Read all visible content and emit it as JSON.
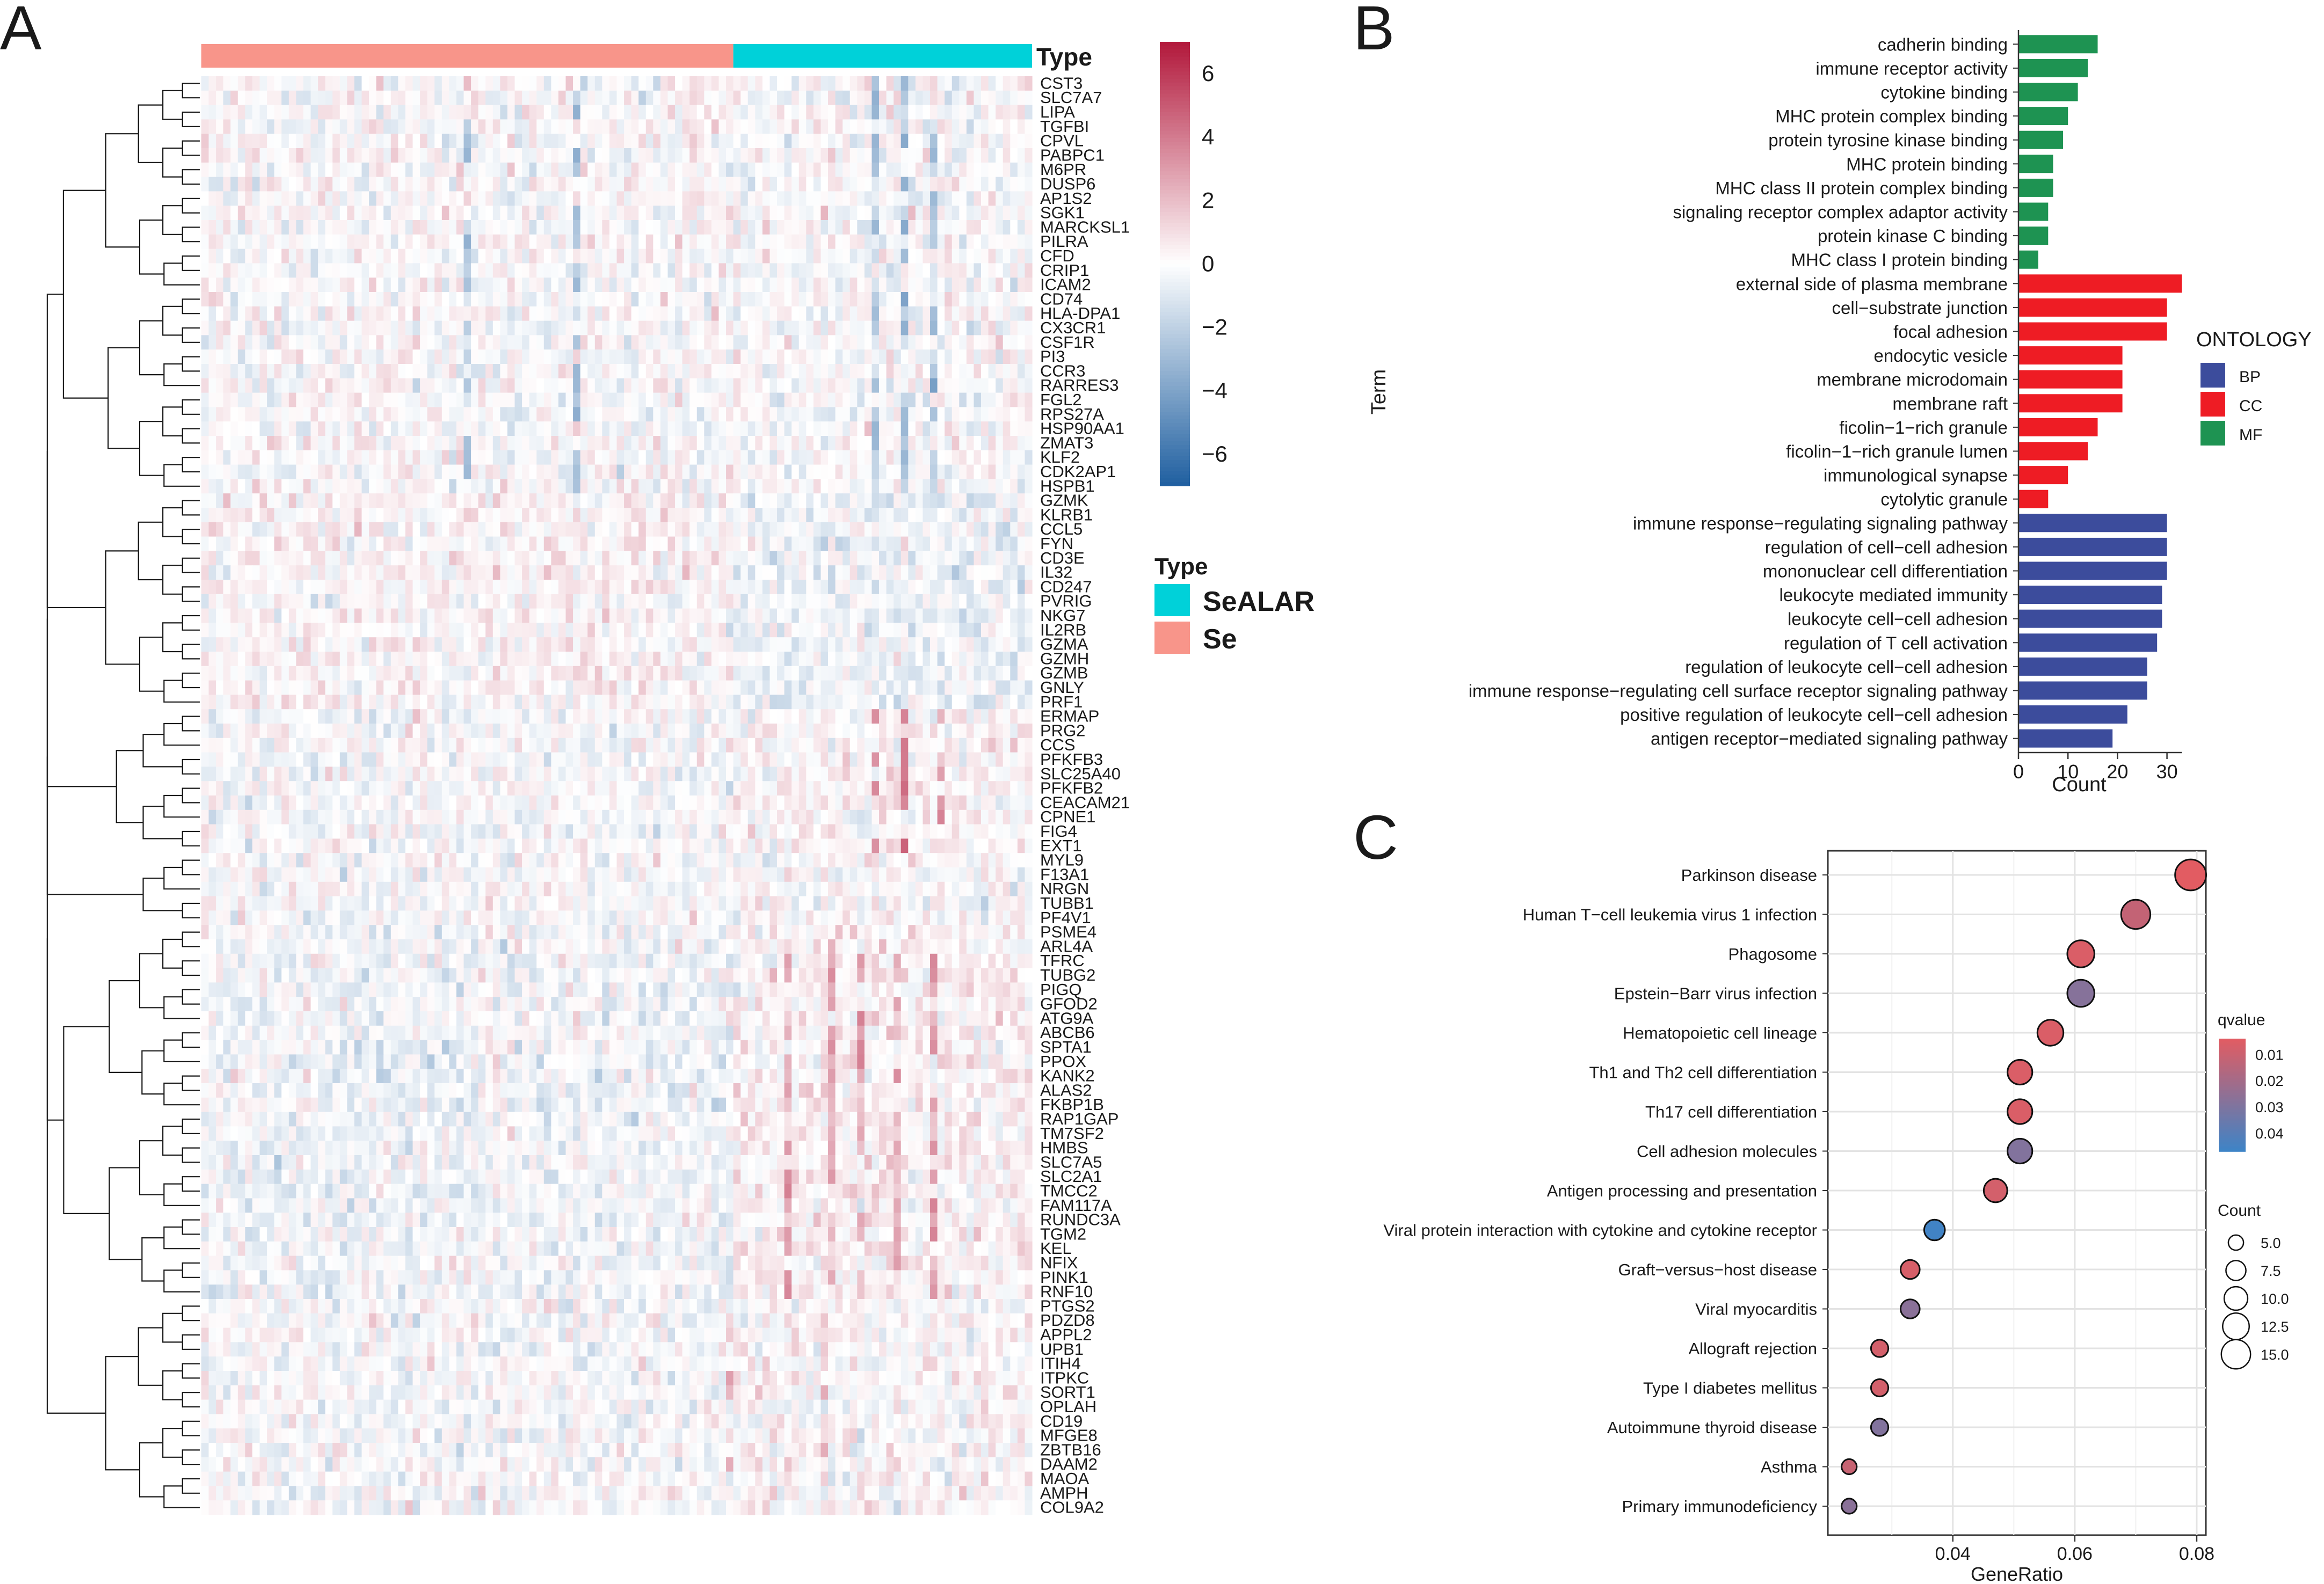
{
  "panel_labels": {
    "a": "A",
    "b": "B",
    "c": "C"
  },
  "colors": {
    "se": "#F8958A",
    "sealar": "#00D1D9",
    "heat_low": "#1F5FA0",
    "heat_mid": "#FFFFFF",
    "heat_high": "#B2183B",
    "bp": "#3C4C9C",
    "cc": "#EE1C24",
    "mf": "#1E9352",
    "q_low": "#E25C62",
    "q_high": "#3D84C7"
  },
  "chart_data": [
    {
      "type": "heatmap",
      "annotation_title": "Type",
      "legend_title": "Type",
      "legend": [
        {
          "name": "SeALAR",
          "color": "#00D1D9"
        },
        {
          "name": "Se",
          "color": "#F8958A"
        }
      ],
      "group_sizes": {
        "Se": 73,
        "SeALAR": 41
      },
      "color_scale": {
        "min": -7,
        "max": 7,
        "ticks": [
          "6",
          "4",
          "2",
          "0",
          "−2",
          "−4",
          "−6"
        ]
      },
      "genes": [
        "CST3",
        "SLC7A7",
        "LIPA",
        "TGFBI",
        "CPVL",
        "PABPC1",
        "M6PR",
        "DUSP6",
        "AP1S2",
        "SGK1",
        "MARCKSL1",
        "PILRA",
        "CFD",
        "CRIP1",
        "ICAM2",
        "CD74",
        "HLA-DPA1",
        "CX3CR1",
        "CSF1R",
        "PI3",
        "CCR3",
        "RARRES3",
        "FGL2",
        "RPS27A",
        "HSP90AA1",
        "ZMAT3",
        "KLF2",
        "CDK2AP1",
        "HSPB1",
        "GZMK",
        "KLRB1",
        "CCL5",
        "FYN",
        "CD3E",
        "IL32",
        "CD247",
        "PVRIG",
        "NKG7",
        "IL2RB",
        "GZMA",
        "GZMH",
        "GZMB",
        "GNLY",
        "PRF1",
        "ERMAP",
        "PRG2",
        "CCS",
        "PFKFB3",
        "SLC25A40",
        "PFKFB2",
        "CEACAM21",
        "CPNE1",
        "FIG4",
        "EXT1",
        "MYL9",
        "F13A1",
        "NRGN",
        "TUBB1",
        "PF4V1",
        "PSME4",
        "ARL4A",
        "TFRC",
        "TUBG2",
        "PIGQ",
        "GFOD2",
        "ATG9A",
        "ABCB6",
        "SPTA1",
        "PPOX",
        "KANK2",
        "ALAS2",
        "FKBP1B",
        "RAP1GAP",
        "TM7SF2",
        "HMBS",
        "SLC7A5",
        "SLC2A1",
        "TMCC2",
        "FAM117A",
        "RUNDC3A",
        "TGM2",
        "KEL",
        "NFIX",
        "PINK1",
        "RNF10",
        "PTGS2",
        "PDZD8",
        "APPL2",
        "UPB1",
        "ITIH4",
        "ITPKC",
        "SORT1",
        "OPLAH",
        "CD19",
        "MFGE8",
        "ZBTB16",
        "DAAM2",
        "MAOA",
        "AMPH",
        "COL9A2"
      ]
    },
    {
      "type": "bar",
      "orientation": "horizontal",
      "ylabel": "Term",
      "xlabel": "Count",
      "xlim": [
        0,
        33
      ],
      "xticks": [
        0,
        10,
        20,
        30
      ],
      "legend_title": "ONTOLOGY",
      "legend": [
        {
          "name": "BP",
          "color": "#3C4C9C"
        },
        {
          "name": "CC",
          "color": "#EE1C24"
        },
        {
          "name": "MF",
          "color": "#1E9352"
        }
      ],
      "bars": [
        {
          "term": "cadherin binding",
          "value": 16,
          "ontology": "MF"
        },
        {
          "term": "immune receptor activity",
          "value": 14,
          "ontology": "MF"
        },
        {
          "term": "cytokine binding",
          "value": 12,
          "ontology": "MF"
        },
        {
          "term": "MHC protein complex binding",
          "value": 10,
          "ontology": "MF"
        },
        {
          "term": "protein tyrosine kinase binding",
          "value": 9,
          "ontology": "MF"
        },
        {
          "term": "MHC protein binding",
          "value": 7,
          "ontology": "MF"
        },
        {
          "term": "MHC class II protein complex binding",
          "value": 7,
          "ontology": "MF"
        },
        {
          "term": "signaling receptor complex adaptor activity",
          "value": 6,
          "ontology": "MF"
        },
        {
          "term": "protein kinase C binding",
          "value": 6,
          "ontology": "MF"
        },
        {
          "term": "MHC class I protein binding",
          "value": 4,
          "ontology": "MF"
        },
        {
          "term": "external side of plasma membrane",
          "value": 33,
          "ontology": "CC"
        },
        {
          "term": "cell−substrate junction",
          "value": 30,
          "ontology": "CC"
        },
        {
          "term": "focal adhesion",
          "value": 30,
          "ontology": "CC"
        },
        {
          "term": "endocytic vesicle",
          "value": 21,
          "ontology": "CC"
        },
        {
          "term": "membrane microdomain",
          "value": 21,
          "ontology": "CC"
        },
        {
          "term": "membrane raft",
          "value": 21,
          "ontology": "CC"
        },
        {
          "term": "ficolin−1−rich granule",
          "value": 16,
          "ontology": "CC"
        },
        {
          "term": "ficolin−1−rich granule lumen",
          "value": 14,
          "ontology": "CC"
        },
        {
          "term": "immunological synapse",
          "value": 10,
          "ontology": "CC"
        },
        {
          "term": "cytolytic granule",
          "value": 6,
          "ontology": "CC"
        },
        {
          "term": "immune response−regulating signaling pathway",
          "value": 30,
          "ontology": "BP"
        },
        {
          "term": "regulation of cell−cell adhesion",
          "value": 30,
          "ontology": "BP"
        },
        {
          "term": "mononuclear cell differentiation",
          "value": 30,
          "ontology": "BP"
        },
        {
          "term": "leukocyte mediated immunity",
          "value": 29,
          "ontology": "BP"
        },
        {
          "term": "leukocyte cell−cell adhesion",
          "value": 29,
          "ontology": "BP"
        },
        {
          "term": "regulation of T cell activation",
          "value": 28,
          "ontology": "BP"
        },
        {
          "term": "regulation of leukocyte cell−cell adhesion",
          "value": 26,
          "ontology": "BP"
        },
        {
          "term": "immune response−regulating cell surface receptor signaling pathway",
          "value": 26,
          "ontology": "BP"
        },
        {
          "term": "positive regulation of leukocyte cell−cell adhesion",
          "value": 22,
          "ontology": "BP"
        },
        {
          "term": "antigen receptor−mediated signaling pathway",
          "value": 19,
          "ontology": "BP"
        }
      ]
    },
    {
      "type": "scatter",
      "subtype": "dot_plot",
      "xlabel": "GeneRatio",
      "xlim": [
        0.0195,
        0.0815
      ],
      "xticks": [
        "0.04",
        "0.06",
        "0.08"
      ],
      "xtick_values": [
        0.04,
        0.06,
        0.08
      ],
      "color_legend_title": "qvalue",
      "color_ticks": [
        "0.01",
        "0.02",
        "0.03",
        "0.04"
      ],
      "color_tick_values": [
        0.01,
        0.02,
        0.03,
        0.04
      ],
      "q_range": [
        0.004,
        0.047
      ],
      "size_legend_title": "Count",
      "size_ticks": [
        "5.0",
        "7.5",
        "10.0",
        "12.5",
        "15.0"
      ],
      "size_tick_values": [
        5,
        7.5,
        10,
        12.5,
        15
      ],
      "points": [
        {
          "term": "Parkinson disease",
          "gene_ratio": 0.079,
          "count": 17,
          "qvalue": 0.004
        },
        {
          "term": "Human T−cell leukemia virus 1 infection",
          "gene_ratio": 0.07,
          "count": 15,
          "qvalue": 0.012
        },
        {
          "term": "Phagosome",
          "gene_ratio": 0.061,
          "count": 13,
          "qvalue": 0.006
        },
        {
          "term": "Epstein−Barr virus infection",
          "gene_ratio": 0.061,
          "count": 13,
          "qvalue": 0.028
        },
        {
          "term": "Hematopoietic cell lineage",
          "gene_ratio": 0.056,
          "count": 12,
          "qvalue": 0.006
        },
        {
          "term": "Th1 and Th2 cell differentiation",
          "gene_ratio": 0.051,
          "count": 11,
          "qvalue": 0.006
        },
        {
          "term": "Th17 cell differentiation",
          "gene_ratio": 0.051,
          "count": 11,
          "qvalue": 0.006
        },
        {
          "term": "Cell adhesion molecules",
          "gene_ratio": 0.051,
          "count": 11,
          "qvalue": 0.029
        },
        {
          "term": "Antigen processing and presentation",
          "gene_ratio": 0.047,
          "count": 10,
          "qvalue": 0.008
        },
        {
          "term": "Viral protein interaction with cytokine and cytokine receptor",
          "gene_ratio": 0.037,
          "count": 8,
          "qvalue": 0.046
        },
        {
          "term": "Graft−versus−host disease",
          "gene_ratio": 0.033,
          "count": 7,
          "qvalue": 0.007
        },
        {
          "term": "Viral myocarditis",
          "gene_ratio": 0.033,
          "count": 7,
          "qvalue": 0.027
        },
        {
          "term": "Allograft rejection",
          "gene_ratio": 0.028,
          "count": 6,
          "qvalue": 0.008
        },
        {
          "term": "Type I diabetes mellitus",
          "gene_ratio": 0.028,
          "count": 6,
          "qvalue": 0.008
        },
        {
          "term": "Autoimmune thyroid disease",
          "gene_ratio": 0.028,
          "count": 6,
          "qvalue": 0.029
        },
        {
          "term": "Asthma",
          "gene_ratio": 0.023,
          "count": 5,
          "qvalue": 0.011
        },
        {
          "term": "Primary immunodeficiency",
          "gene_ratio": 0.023,
          "count": 5,
          "qvalue": 0.027
        }
      ]
    }
  ]
}
